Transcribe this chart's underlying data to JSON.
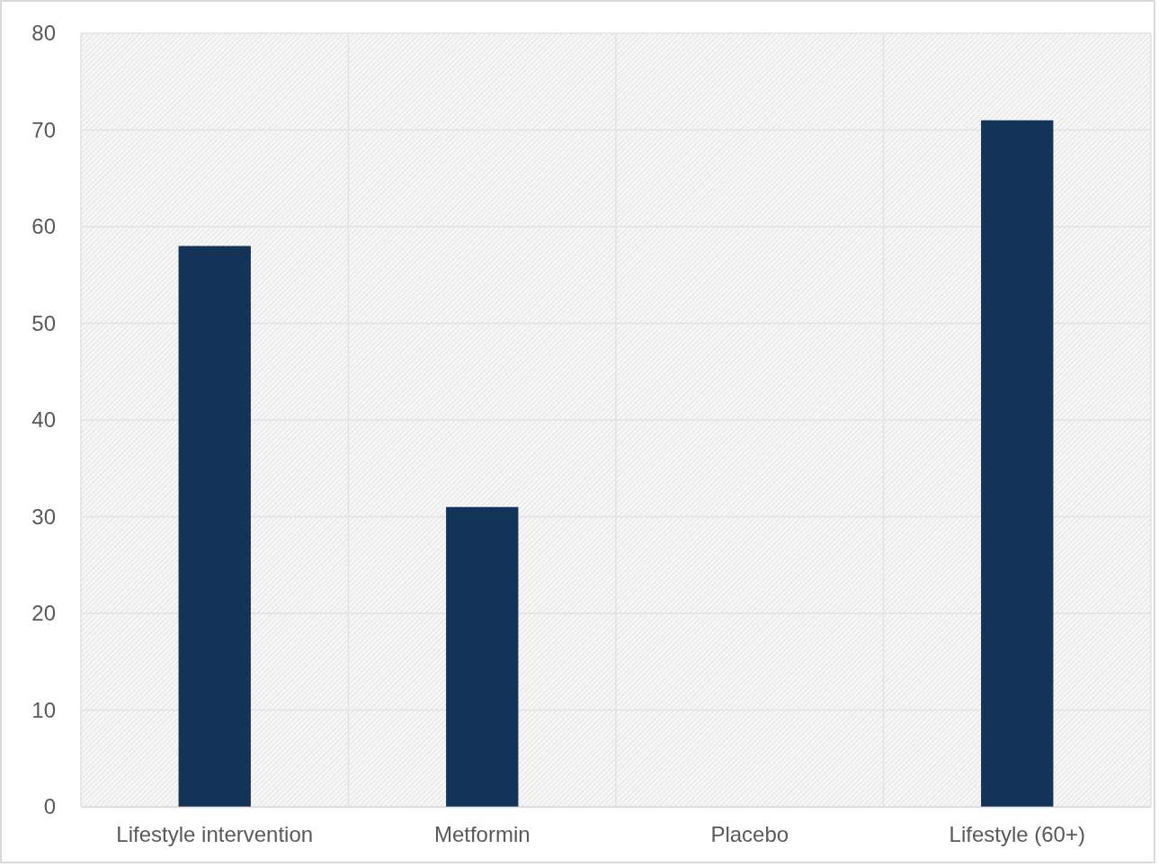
{
  "chart_data": {
    "type": "bar",
    "categories": [
      "Lifestyle intervention",
      "Metformin",
      "Placebo",
      "Lifestyle (60+)"
    ],
    "values": [
      58,
      31,
      0,
      71
    ],
    "color": "#133358",
    "ylim": [
      0,
      80
    ],
    "yticks": [
      0,
      10,
      20,
      30,
      40,
      50,
      60,
      70,
      80
    ],
    "grid": true
  }
}
